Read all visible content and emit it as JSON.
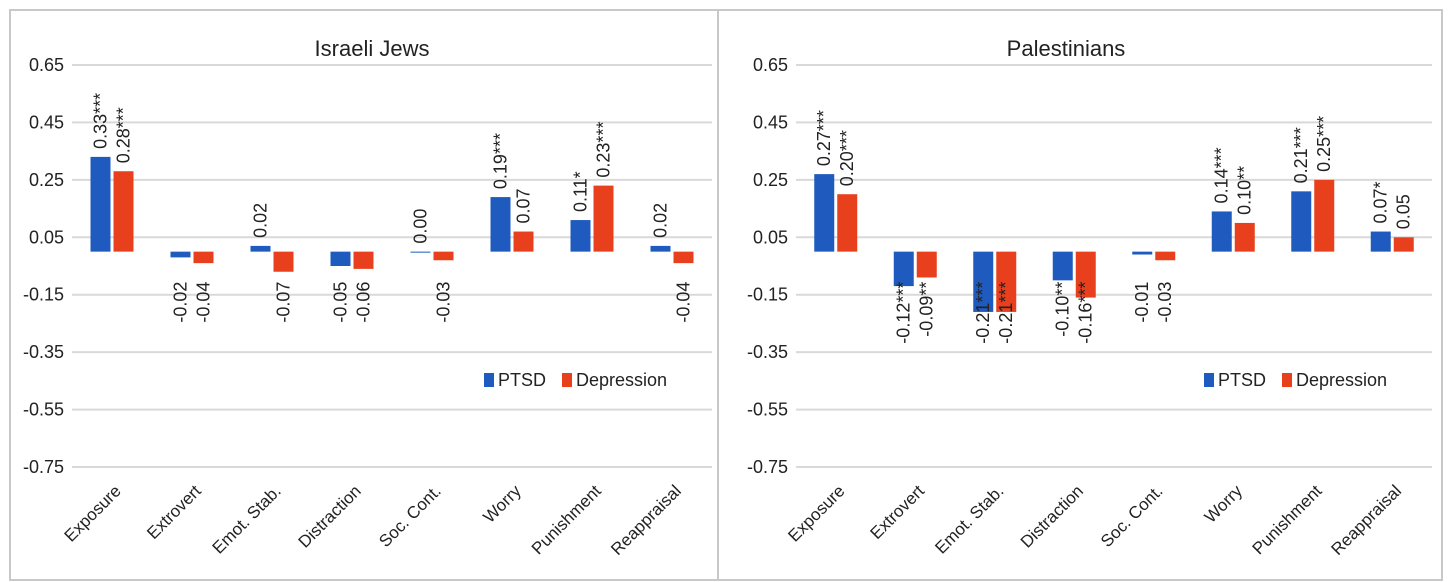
{
  "chart_data": [
    {
      "type": "bar",
      "title": "Israeli Jews",
      "categories": [
        "Exposure",
        "Extrovert",
        "Emot. Stab.",
        "Distraction",
        "Soc. Cont.",
        "Worry",
        "Punishment",
        "Reappraisal"
      ],
      "ylim": [
        -0.75,
        0.65
      ],
      "yticks": [
        "0.65",
        "0.45",
        "0.25",
        "0.05",
        "-0.15",
        "-0.35",
        "-0.55",
        "-0.75"
      ],
      "ytick_values": [
        0.65,
        0.45,
        0.25,
        0.05,
        -0.15,
        -0.35,
        -0.55,
        -0.75
      ],
      "grid": true,
      "legend_position": "lower-right",
      "series": [
        {
          "name": "PTSD",
          "color": "#1f5bbf",
          "values": [
            0.33,
            -0.02,
            0.02,
            -0.05,
            0.0,
            0.19,
            0.11,
            0.02
          ],
          "labels": [
            "0.33***",
            "-0.02",
            "0.02",
            "-0.05",
            "0.00",
            "0.19***",
            "0.11*",
            "0.02"
          ]
        },
        {
          "name": "Depression",
          "color": "#e8401c",
          "values": [
            0.28,
            -0.04,
            -0.07,
            -0.06,
            -0.03,
            0.07,
            0.23,
            -0.04
          ],
          "labels": [
            "0.28***",
            "-0.04",
            "-0.07",
            "-0.06",
            "-0.03",
            "0.07",
            "0.23***",
            "-0.04"
          ]
        }
      ]
    },
    {
      "type": "bar",
      "title": "Palestinians",
      "categories": [
        "Exposure",
        "Extrovert",
        "Emot. Stab.",
        "Distraction",
        "Soc. Cont.",
        "Worry",
        "Punishment",
        "Reappraisal"
      ],
      "ylim": [
        -0.75,
        0.65
      ],
      "yticks": [
        "0.65",
        "0.45",
        "0.25",
        "0.05",
        "-0.15",
        "-0.35",
        "-0.55",
        "-0.75"
      ],
      "ytick_values": [
        0.65,
        0.45,
        0.25,
        0.05,
        -0.15,
        -0.35,
        -0.55,
        -0.75
      ],
      "grid": true,
      "legend_position": "lower-right",
      "series": [
        {
          "name": "PTSD",
          "color": "#1f5bbf",
          "values": [
            0.27,
            -0.12,
            -0.21,
            -0.1,
            -0.01,
            0.14,
            0.21,
            0.07
          ],
          "labels": [
            "0.27***",
            "-0.12***",
            "-0.21***",
            "-0.10**",
            "-0.01",
            "0.14***",
            "0.21***",
            "0.07*"
          ]
        },
        {
          "name": "Depression",
          "color": "#e8401c",
          "values": [
            0.2,
            -0.09,
            -0.21,
            -0.16,
            -0.03,
            0.1,
            0.25,
            0.05
          ],
          "labels": [
            "0.20***",
            "-0.09**",
            "-0.21***",
            "-0.16***",
            "-0.03",
            "0.10**",
            "0.25***",
            "0.05"
          ]
        }
      ]
    }
  ]
}
